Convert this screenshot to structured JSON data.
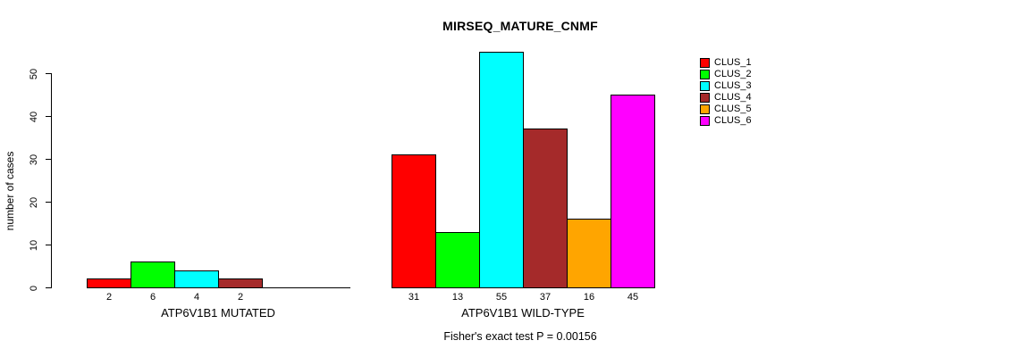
{
  "title": "MIRSEQ_MATURE_CNMF",
  "annotation": "Fisher's exact test P = 0.00156",
  "y_axis": {
    "label": "number of cases",
    "ticks": [
      0,
      10,
      20,
      30,
      40,
      50
    ]
  },
  "chart_data": {
    "type": "bar",
    "title": "MIRSEQ_MATURE_CNMF",
    "xlabel": "",
    "ylabel": "number of cases",
    "ylim": [
      0,
      55
    ],
    "yticks": [
      0,
      10,
      20,
      30,
      40,
      50
    ],
    "grid": false,
    "legend_position": "top-right",
    "series_labels": [
      "CLUS_1",
      "CLUS_2",
      "CLUS_3",
      "CLUS_4",
      "CLUS_5",
      "CLUS_6"
    ],
    "series_colors": [
      "#FF0000",
      "#00FF00",
      "#00FFFF",
      "#A52A2A",
      "#FFA500",
      "#FF00FF"
    ],
    "groups": [
      {
        "label": "ATP6V1B1 MUTATED",
        "values": [
          2,
          6,
          4,
          2,
          0,
          0
        ]
      },
      {
        "label": "ATP6V1B1 WILD-TYPE",
        "values": [
          31,
          13,
          55,
          37,
          16,
          45
        ]
      }
    ],
    "annotation": "Fisher's exact test P = 0.00156"
  }
}
